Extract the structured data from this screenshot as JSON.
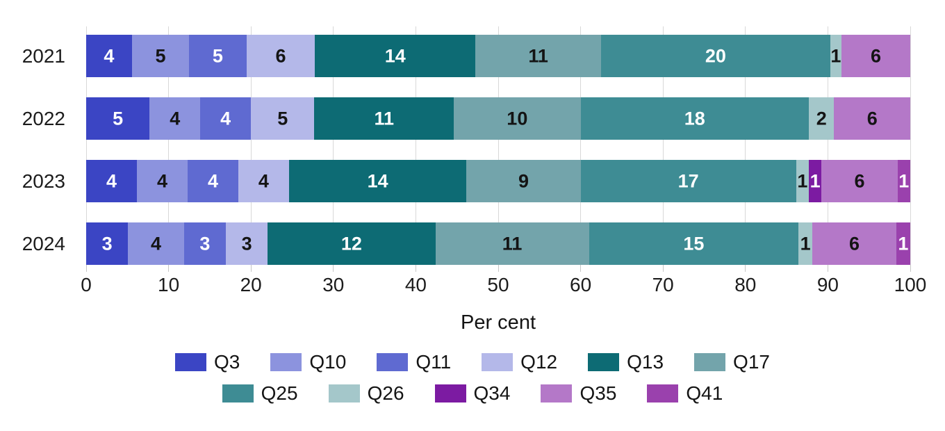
{
  "chart_data": {
    "type": "bar",
    "variant": "horizontal-stacked-normalized",
    "title": "",
    "xlabel": "Per cent",
    "ylabel": "",
    "xlim": [
      0,
      100
    ],
    "x_ticks": [
      0,
      10,
      20,
      30,
      40,
      50,
      60,
      70,
      80,
      90,
      100
    ],
    "grid": true,
    "gridline_color": "#d8d8d8",
    "tick_color": "#c6c6c6",
    "legend_position": "bottom",
    "categories": [
      "2021",
      "2022",
      "2023",
      "2024"
    ],
    "series": [
      {
        "name": "Q3",
        "values": [
          4,
          5,
          4,
          3
        ],
        "color": "#3b45c4",
        "label_text_color": "#ffffff"
      },
      {
        "name": "Q10",
        "values": [
          5,
          4,
          4,
          4
        ],
        "color": "#8c93de",
        "label_text_color": "#141414"
      },
      {
        "name": "Q11",
        "values": [
          5,
          4,
          4,
          3
        ],
        "color": "#5f6ad1",
        "label_text_color": "#ffffff"
      },
      {
        "name": "Q12",
        "values": [
          6,
          5,
          4,
          3
        ],
        "color": "#b4b8e9",
        "label_text_color": "#141414"
      },
      {
        "name": "Q13",
        "values": [
          14,
          11,
          14,
          12
        ],
        "color": "#0d6b74",
        "label_text_color": "#ffffff"
      },
      {
        "name": "Q17",
        "values": [
          11,
          10,
          9,
          11
        ],
        "color": "#73a4ab",
        "label_text_color": "#141414"
      },
      {
        "name": "Q25",
        "values": [
          20,
          18,
          17,
          15
        ],
        "color": "#3e8c94",
        "label_text_color": "#ffffff"
      },
      {
        "name": "Q26",
        "values": [
          1,
          2,
          1,
          1
        ],
        "color": "#a4c7ca",
        "label_text_color": "#141414"
      },
      {
        "name": "Q34",
        "values": [
          0,
          0,
          1,
          0
        ],
        "color": "#7c1ba2",
        "label_text_color": "#ffffff"
      },
      {
        "name": "Q35",
        "values": [
          6,
          6,
          6,
          6
        ],
        "color": "#b478c8",
        "label_text_color": "#141414"
      },
      {
        "name": "Q41",
        "values": [
          0,
          0,
          1,
          1
        ],
        "color": "#9a41ad",
        "label_text_color": "#ffffff"
      }
    ],
    "legend_rows": [
      [
        "Q3",
        "Q10",
        "Q11",
        "Q12",
        "Q13",
        "Q17"
      ],
      [
        "Q25",
        "Q26",
        "Q34",
        "Q35",
        "Q41"
      ]
    ]
  }
}
